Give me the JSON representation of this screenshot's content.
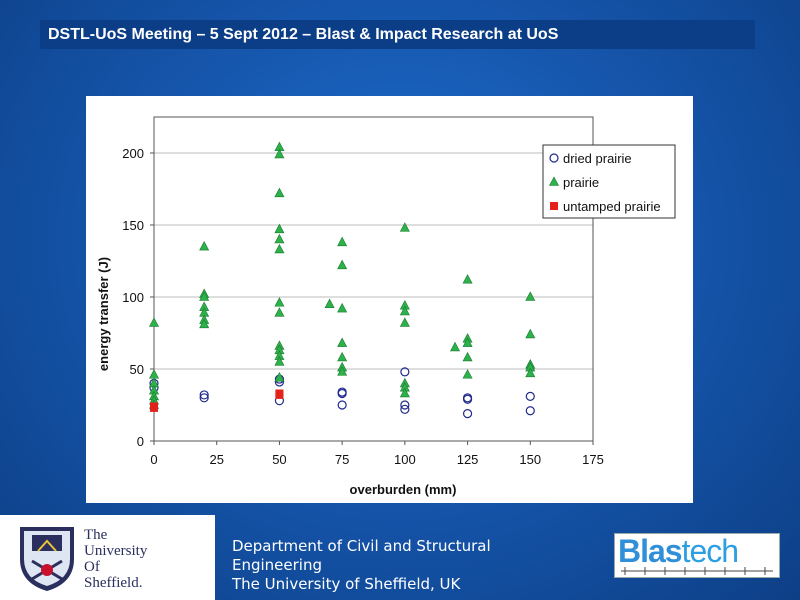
{
  "header": {
    "title": "DSTL-UoS Meeting – 5 Sept 2012 – Blast & Impact Research at UoS"
  },
  "chart_data": {
    "type": "scatter",
    "title": "",
    "xlabel": "overburden (mm)",
    "ylabel": "energy transfer (J)",
    "xlim": [
      0,
      175
    ],
    "ylim": [
      0,
      225
    ],
    "xticks": [
      0,
      25,
      50,
      75,
      100,
      125,
      150,
      175
    ],
    "yticks": [
      0,
      50,
      100,
      150,
      200
    ],
    "grid": "horizontal",
    "legend_position": "top-right",
    "series": [
      {
        "name": "dried prairie",
        "marker": "open-circle",
        "color": "#1f2a8c",
        "points": [
          [
            0,
            40
          ],
          [
            0,
            37
          ],
          [
            20,
            32
          ],
          [
            20,
            30
          ],
          [
            50,
            43
          ],
          [
            50,
            41
          ],
          [
            50,
            28
          ],
          [
            75,
            34
          ],
          [
            75,
            33
          ],
          [
            75,
            25
          ],
          [
            100,
            48
          ],
          [
            100,
            25
          ],
          [
            100,
            22
          ],
          [
            125,
            30
          ],
          [
            125,
            29
          ],
          [
            125,
            19
          ],
          [
            150,
            31
          ],
          [
            150,
            21
          ]
        ]
      },
      {
        "name": "prairie",
        "marker": "triangle",
        "color": "#2db14a",
        "points": [
          [
            0,
            82
          ],
          [
            0,
            46
          ],
          [
            0,
            40
          ],
          [
            0,
            35
          ],
          [
            0,
            31
          ],
          [
            0,
            28
          ],
          [
            0,
            25
          ],
          [
            20,
            135
          ],
          [
            20,
            102
          ],
          [
            20,
            100
          ],
          [
            20,
            93
          ],
          [
            20,
            89
          ],
          [
            20,
            84
          ],
          [
            20,
            81
          ],
          [
            50,
            204
          ],
          [
            50,
            199
          ],
          [
            50,
            172
          ],
          [
            50,
            147
          ],
          [
            50,
            140
          ],
          [
            50,
            133
          ],
          [
            50,
            96
          ],
          [
            50,
            89
          ],
          [
            50,
            66
          ],
          [
            50,
            63
          ],
          [
            50,
            59
          ],
          [
            50,
            55
          ],
          [
            50,
            44
          ],
          [
            70,
            95
          ],
          [
            75,
            138
          ],
          [
            75,
            122
          ],
          [
            75,
            92
          ],
          [
            75,
            68
          ],
          [
            75,
            58
          ],
          [
            75,
            51
          ],
          [
            75,
            48
          ],
          [
            100,
            148
          ],
          [
            100,
            94
          ],
          [
            100,
            90
          ],
          [
            100,
            82
          ],
          [
            100,
            40
          ],
          [
            100,
            37
          ],
          [
            100,
            33
          ],
          [
            120,
            65
          ],
          [
            125,
            112
          ],
          [
            125,
            71
          ],
          [
            125,
            68
          ],
          [
            125,
            58
          ],
          [
            125,
            46
          ],
          [
            150,
            100
          ],
          [
            150,
            74
          ],
          [
            150,
            53
          ],
          [
            150,
            51
          ],
          [
            150,
            47
          ]
        ]
      },
      {
        "name": "untamped prairie",
        "marker": "square",
        "color": "#e3231b",
        "points": [
          [
            0,
            24
          ],
          [
            0,
            23
          ],
          [
            50,
            33
          ],
          [
            50,
            32
          ]
        ]
      }
    ]
  },
  "logos": {
    "university_line1": "The",
    "university_line2": "University",
    "university_line3": "Of",
    "university_line4": "Sheffield.",
    "blastech_part1": "Blas",
    "blastech_part2": "tech"
  },
  "department": {
    "line1": "Department of Civil and Structural",
    "line2": "Engineering",
    "line3": "The University of Sheffield, UK"
  }
}
